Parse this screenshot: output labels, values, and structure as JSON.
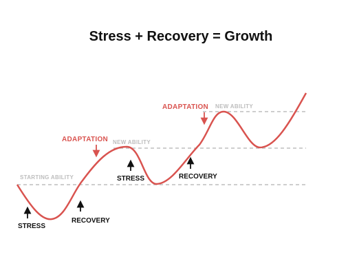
{
  "title": "Stress + Recovery = Growth",
  "levels": [
    "STARTING ABILITY",
    "NEW ABILITY",
    "NEW ABILITY"
  ],
  "adaptations": [
    "ADAPTATION",
    "ADAPTATION"
  ],
  "cycles": [
    {
      "stress": "STRESS",
      "recovery": "RECOVERY"
    },
    {
      "stress": "STRESS",
      "recovery": "RECOVERY"
    }
  ]
}
